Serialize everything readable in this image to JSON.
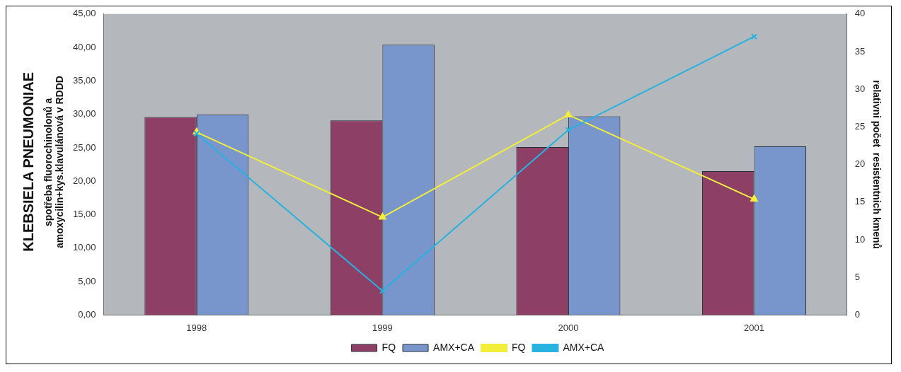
{
  "chart_data": {
    "type": "bar",
    "title": "KLEBSIELA PNEUMONIAE",
    "ylabel": "spotřeba fluorochinolonů a amoxycilin+kys.klavulánová v RDDD",
    "y2label": "relativni počet  resistentnich kmenů",
    "categories": [
      "1998",
      "1999",
      "2000",
      "2001"
    ],
    "series": [
      {
        "name": "FQ",
        "color": "#8e3f66",
        "values": [
          29.6,
          29.1,
          25.1,
          21.5
        ]
      },
      {
        "name": "AMX+CA",
        "color": "#7895cc",
        "values": [
          30.0,
          40.4,
          29.7,
          25.2
        ]
      },
      {
        "name": "FQ",
        "type": "line",
        "axis": "y2",
        "marker": "triangle",
        "color": "#f2ee3a",
        "values": [
          24.3,
          13.0,
          26.6,
          15.4
        ]
      },
      {
        "name": "AMX+CA",
        "type": "line",
        "axis": "y2",
        "marker": "cross",
        "color": "#27b2e0",
        "values": [
          24.1,
          3.2,
          24.6,
          37.0
        ]
      }
    ],
    "ylim": [
      0,
      45
    ],
    "yticks": [
      {
        "value": 0,
        "label": "0,00"
      },
      {
        "value": 5,
        "label": "5,00"
      },
      {
        "value": 10,
        "label": "10,00"
      },
      {
        "value": 15,
        "label": "15,00"
      },
      {
        "value": 20,
        "label": "20,00"
      },
      {
        "value": 25,
        "label": "25,00"
      },
      {
        "value": 30,
        "label": "30,00"
      },
      {
        "value": 35,
        "label": "35,00"
      },
      {
        "value": 40,
        "label": "40,00"
      },
      {
        "value": 45,
        "label": "45,00"
      }
    ],
    "y2lim": [
      0,
      40
    ],
    "y2ticks": [
      0,
      5,
      10,
      15,
      20,
      25,
      30,
      35,
      40
    ],
    "grid": false,
    "legend": "bottom"
  }
}
